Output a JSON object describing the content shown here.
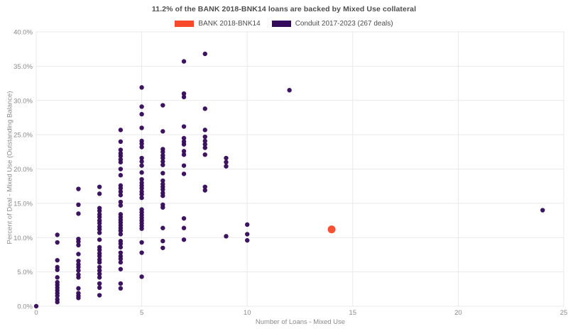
{
  "chart_data": {
    "type": "scatter",
    "title": "11.2% of the BANK 2018-BNK14 loans are backed by Mixed Use collateral",
    "xlabel": "Number of Loans - Mixed Use",
    "ylabel": "Percent of Deal - Mixed Use (Outstanding Balance)",
    "xlim": [
      0,
      25
    ],
    "ylim": [
      0,
      40
    ],
    "x_ticks": [
      0,
      5,
      10,
      15,
      20,
      25
    ],
    "y_ticks": [
      0,
      5,
      10,
      15,
      20,
      25,
      30,
      35,
      40
    ],
    "y_tick_suffix": "%",
    "grid": true,
    "legend_position": "top-center",
    "background": "#ffffff",
    "grid_color": "#e9e9e9",
    "tick_label_color": "#8a8a8a",
    "series": [
      {
        "name": "BANK 2018-BNK14",
        "color": "#f8492b",
        "marker_radius": 5.5,
        "points": [
          [
            14,
            11.2
          ]
        ]
      },
      {
        "name": "Conduit 2017-2023 (267 deals)",
        "color": "#340a5a",
        "marker_radius": 3.2,
        "points": [
          [
            0,
            0
          ],
          [
            1,
            10.4
          ],
          [
            1,
            9.3
          ],
          [
            1,
            6.7
          ],
          [
            1,
            5.7
          ],
          [
            1,
            5.3
          ],
          [
            1,
            4.2
          ],
          [
            1,
            3.5
          ],
          [
            1,
            3.1
          ],
          [
            1,
            2.7
          ],
          [
            1,
            2.3
          ],
          [
            1,
            1.9
          ],
          [
            1,
            1.5
          ],
          [
            1,
            1.0
          ],
          [
            1,
            0.6
          ],
          [
            2,
            17.1
          ],
          [
            2,
            14.8
          ],
          [
            2,
            13.5
          ],
          [
            2,
            9.8
          ],
          [
            2,
            9.4
          ],
          [
            2,
            8.9
          ],
          [
            2,
            7.6
          ],
          [
            2,
            6.6
          ],
          [
            2,
            6.1
          ],
          [
            2,
            5.7
          ],
          [
            2,
            5.2
          ],
          [
            2,
            4.6
          ],
          [
            2,
            4.2
          ],
          [
            2,
            2.6
          ],
          [
            2,
            1.9
          ],
          [
            2,
            1.5
          ],
          [
            2,
            1.2
          ],
          [
            3,
            17.4
          ],
          [
            3,
            16.4
          ],
          [
            3,
            14.3
          ],
          [
            3,
            13.9
          ],
          [
            3,
            13.4
          ],
          [
            3,
            13.0
          ],
          [
            3,
            12.5
          ],
          [
            3,
            12.1
          ],
          [
            3,
            11.6
          ],
          [
            3,
            11.2
          ],
          [
            3,
            10.7
          ],
          [
            3,
            9.7
          ],
          [
            3,
            8.6
          ],
          [
            3,
            8.2
          ],
          [
            3,
            7.7
          ],
          [
            3,
            7.3
          ],
          [
            3,
            6.8
          ],
          [
            3,
            6.4
          ],
          [
            3,
            5.7
          ],
          [
            3,
            5.2
          ],
          [
            3,
            4.7
          ],
          [
            3,
            4.2
          ],
          [
            3,
            3.3
          ],
          [
            3,
            2.7
          ],
          [
            3,
            1.6
          ],
          [
            4,
            25.7
          ],
          [
            4,
            24.0
          ],
          [
            4,
            22.8
          ],
          [
            4,
            22.3
          ],
          [
            4,
            21.9
          ],
          [
            4,
            21.4
          ],
          [
            4,
            21.0
          ],
          [
            4,
            20.0
          ],
          [
            4,
            19.1
          ],
          [
            4,
            17.6
          ],
          [
            4,
            17.2
          ],
          [
            4,
            16.7
          ],
          [
            4,
            16.2
          ],
          [
            4,
            15.2
          ],
          [
            4,
            14.7
          ],
          [
            4,
            13.4
          ],
          [
            4,
            13.0
          ],
          [
            4,
            12.6
          ],
          [
            4,
            12.2
          ],
          [
            4,
            11.8
          ],
          [
            4,
            11.4
          ],
          [
            4,
            11.0
          ],
          [
            4,
            10.5
          ],
          [
            4,
            9.5
          ],
          [
            4,
            9.1
          ],
          [
            4,
            8.6
          ],
          [
            4,
            7.8
          ],
          [
            4,
            7.3
          ],
          [
            4,
            6.9
          ],
          [
            4,
            6.4
          ],
          [
            4,
            5.4
          ],
          [
            4,
            3.3
          ],
          [
            4,
            2.6
          ],
          [
            5,
            31.9
          ],
          [
            5,
            29.1
          ],
          [
            5,
            28.0
          ],
          [
            5,
            26.0
          ],
          [
            5,
            24.1
          ],
          [
            5,
            23.7
          ],
          [
            5,
            23.2
          ],
          [
            5,
            21.6
          ],
          [
            5,
            21.1
          ],
          [
            5,
            20.5
          ],
          [
            5,
            19.5
          ],
          [
            5,
            18.5
          ],
          [
            5,
            18.0
          ],
          [
            5,
            17.6
          ],
          [
            5,
            17.2
          ],
          [
            5,
            16.7
          ],
          [
            5,
            16.3
          ],
          [
            5,
            15.8
          ],
          [
            5,
            14.1
          ],
          [
            5,
            13.7
          ],
          [
            5,
            13.3
          ],
          [
            5,
            12.9
          ],
          [
            5,
            12.5
          ],
          [
            5,
            12.1
          ],
          [
            5,
            11.7
          ],
          [
            5,
            11.3
          ],
          [
            5,
            9.3
          ],
          [
            5,
            7.8
          ],
          [
            5,
            4.3
          ],
          [
            6,
            29.3
          ],
          [
            6,
            25.5
          ],
          [
            6,
            22.9
          ],
          [
            6,
            22.5
          ],
          [
            6,
            22.0
          ],
          [
            6,
            21.6
          ],
          [
            6,
            21.1
          ],
          [
            6,
            20.6
          ],
          [
            6,
            19.4
          ],
          [
            6,
            18.3
          ],
          [
            6,
            17.8
          ],
          [
            6,
            17.4
          ],
          [
            6,
            17.0
          ],
          [
            6,
            16.5
          ],
          [
            6,
            16.1
          ],
          [
            6,
            14.8
          ],
          [
            6,
            14.4
          ],
          [
            6,
            11.4
          ],
          [
            6,
            9.5
          ],
          [
            6,
            8.5
          ],
          [
            7,
            35.7
          ],
          [
            7,
            31.0
          ],
          [
            7,
            30.5
          ],
          [
            7,
            26.2
          ],
          [
            7,
            24.5
          ],
          [
            7,
            24.0
          ],
          [
            7,
            23.6
          ],
          [
            7,
            22.6
          ],
          [
            7,
            22.1
          ],
          [
            7,
            20.5
          ],
          [
            7,
            19.3
          ],
          [
            7,
            12.8
          ],
          [
            7,
            11.4
          ],
          [
            7,
            9.7
          ],
          [
            8,
            36.8
          ],
          [
            8,
            28.8
          ],
          [
            8,
            25.7
          ],
          [
            8,
            24.7
          ],
          [
            8,
            24.1
          ],
          [
            8,
            23.6
          ],
          [
            8,
            23.1
          ],
          [
            8,
            22.1
          ],
          [
            8,
            17.4
          ],
          [
            8,
            16.9
          ],
          [
            9,
            21.6
          ],
          [
            9,
            21.0
          ],
          [
            9,
            20.4
          ],
          [
            9,
            10.2
          ],
          [
            10,
            11.9
          ],
          [
            10,
            10.5
          ],
          [
            10,
            9.6
          ],
          [
            12,
            31.5
          ],
          [
            24,
            14.0
          ]
        ]
      }
    ]
  }
}
